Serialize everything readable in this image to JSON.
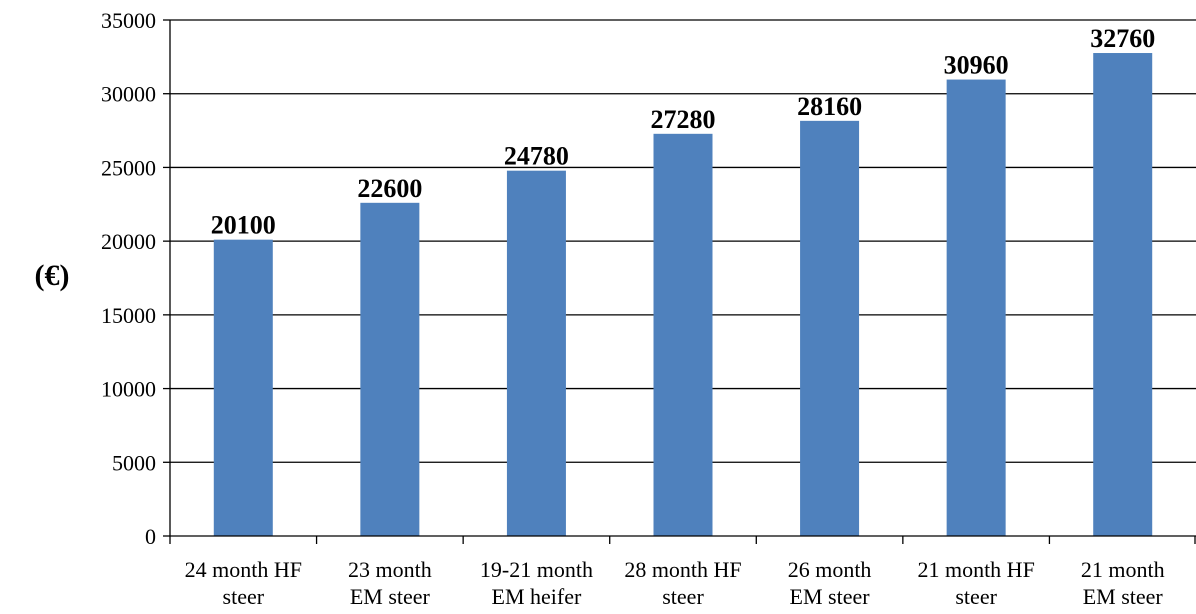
{
  "chart_data": {
    "type": "bar",
    "title": "",
    "xlabel": "",
    "ylabel": "(€)",
    "ylim": [
      0,
      35000
    ],
    "yticks": [
      0,
      5000,
      10000,
      15000,
      20000,
      25000,
      30000,
      35000
    ],
    "grid": true,
    "legend": "none",
    "bar_color": "#4f81bd",
    "categories": [
      [
        "24 month HF",
        "steer"
      ],
      [
        "23 month",
        "EM steer"
      ],
      [
        "19-21 month",
        "EM heifer"
      ],
      [
        "28 month HF",
        "steer"
      ],
      [
        "26 month",
        "EM steer"
      ],
      [
        "21 month HF",
        "steer"
      ],
      [
        "21 month",
        "EM steer"
      ]
    ],
    "values": [
      20100,
      22600,
      24780,
      27280,
      28160,
      30960,
      32760
    ]
  }
}
